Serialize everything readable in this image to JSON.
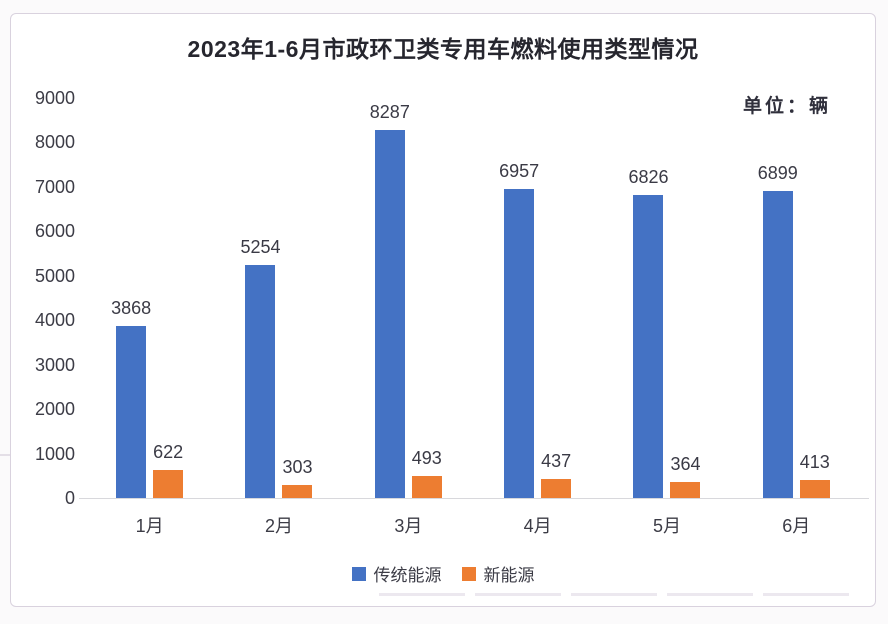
{
  "card": {
    "title": "2023年1-6月市政环卫类专用车燃料使用类型情况",
    "unit_label": "单位：辆"
  },
  "chart_data": {
    "type": "bar",
    "title": "2023年1-6月市政环卫类专用车燃料使用类型情况",
    "unit": "单位：辆",
    "categories": [
      "1月",
      "2月",
      "3月",
      "4月",
      "5月",
      "6月"
    ],
    "series": [
      {
        "name": "传统能源",
        "color": "#4472C4",
        "values": [
          3868,
          5254,
          8287,
          6957,
          6826,
          6899
        ]
      },
      {
        "name": "新能源",
        "color": "#ED7D31",
        "values": [
          622,
          303,
          493,
          437,
          364,
          413
        ]
      }
    ],
    "ylim": [
      0,
      9000
    ],
    "yticks": [
      0,
      1000,
      2000,
      3000,
      4000,
      5000,
      6000,
      7000,
      8000,
      9000
    ],
    "grid": false,
    "data_labels": true,
    "legend_position": "bottom"
  }
}
